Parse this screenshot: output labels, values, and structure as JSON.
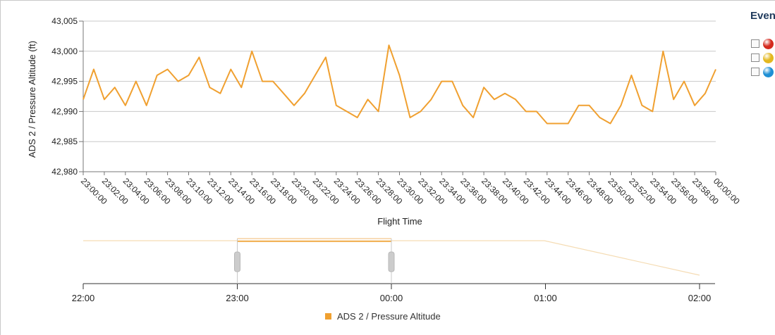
{
  "chart_data": {
    "type": "line",
    "title": "",
    "ylabel": "ADS 2 / Pressure Altitude (ft)",
    "xlabel": "Flight Time",
    "ylim": [
      42980,
      43005
    ],
    "yticks": [
      "42,980",
      "42,985",
      "42,990",
      "42,995",
      "43,000",
      "43,005"
    ],
    "ytick_values": [
      42980,
      42985,
      42990,
      42995,
      43000,
      43005
    ],
    "xticks": [
      "23:00:00",
      "23:02:00",
      "23:04:00",
      "23:06:00",
      "23:08:00",
      "23:10:00",
      "23:12:00",
      "23:14:00",
      "23:16:00",
      "23:18:00",
      "23:20:00",
      "23:22:00",
      "23:24:00",
      "23:26:00",
      "23:28:00",
      "23:30:00",
      "23:32:00",
      "23:34:00",
      "23:36:00",
      "23:38:00",
      "23:40:00",
      "23:42:00",
      "23:44:00",
      "23:46:00",
      "23:48:00",
      "23:50:00",
      "23:52:00",
      "23:54:00",
      "23:56:00",
      "23:58:00",
      "00:00:00"
    ],
    "x_start": "23:00:00",
    "x_step_seconds": 60,
    "series": [
      {
        "name": "ADS 2 / Pressure Altitude",
        "color": "#f0a030",
        "values": [
          42992,
          42997,
          42992,
          42994,
          42991,
          42995,
          42991,
          42996,
          42997,
          42995,
          42996,
          42999,
          42994,
          42993,
          42997,
          42994,
          43000,
          42995,
          42995,
          42993,
          42991,
          42993,
          42996,
          42999,
          42991,
          42990,
          42989,
          42992,
          42990,
          43001,
          42996,
          42989,
          42990,
          42992,
          42995,
          42995,
          42991,
          42989,
          42994,
          42992,
          42993,
          42992,
          42990,
          42990,
          42988,
          42988,
          42988,
          42991,
          42991,
          42989,
          42988,
          42991,
          42996,
          42991,
          42990,
          43000,
          42992,
          42995,
          42991,
          42993,
          42997
        ]
      }
    ],
    "grid": true,
    "legend_position": "bottom-center",
    "navigator": {
      "xticks": [
        "22:00",
        "23:00",
        "00:00",
        "01:00",
        "02:00"
      ],
      "selection": [
        "23:00",
        "00:00"
      ]
    }
  },
  "legend": {
    "label": "ADS 2 / Pressure Altitude",
    "color": "#f0a030"
  },
  "events": {
    "title": "Events",
    "items": [
      {
        "icon": "red-event-icon",
        "color": "#d42a1e"
      },
      {
        "icon": "yellow-event-icon",
        "color": "#e3b81f"
      },
      {
        "icon": "blue-event-icon",
        "color": "#1e8fd4"
      }
    ]
  }
}
